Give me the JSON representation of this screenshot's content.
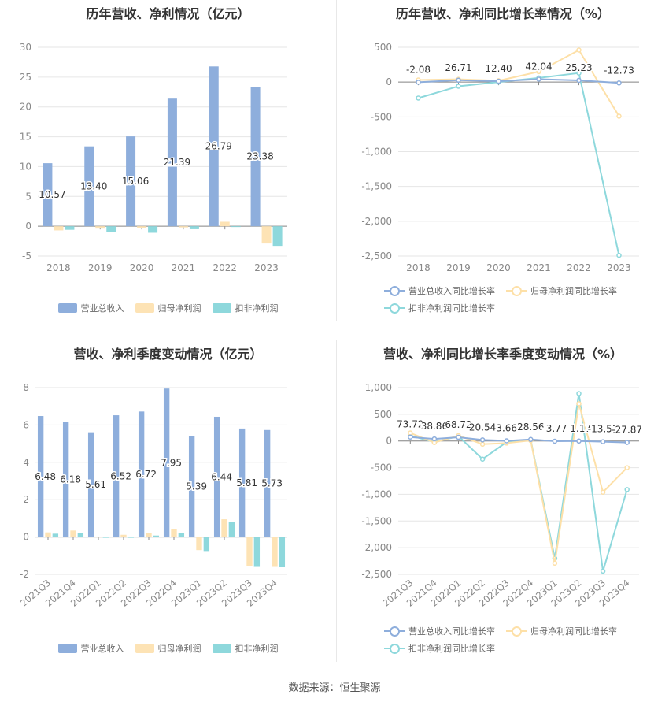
{
  "source": "数据来源：恒生聚源",
  "colors": {
    "revenue": "#8eaedc",
    "net_profit": "#fde3b5",
    "deducted_profit": "#8ed8dc",
    "revenue_line": "#8eaedc",
    "net_profit_line": "#fde0a8",
    "deducted_profit_line": "#8ed8dc"
  },
  "chart_data": [
    {
      "id": "annual_values",
      "type": "bar",
      "title": "历年营收、净利情况（亿元）",
      "categories": [
        "2018",
        "2019",
        "2020",
        "2021",
        "2022",
        "2023"
      ],
      "ylim": [
        -5,
        30
      ],
      "yticks": [
        -5,
        0,
        5,
        10,
        15,
        20,
        25,
        30
      ],
      "grid": true,
      "legend": "bottom",
      "series": [
        {
          "name": "营业总收入",
          "values": [
            10.57,
            13.4,
            15.06,
            21.39,
            26.79,
            23.38
          ],
          "labels": [
            "10.57",
            "13.40",
            "15.06",
            "21.39",
            "26.79",
            "23.38"
          ]
        },
        {
          "name": "归母净利润",
          "values": [
            -0.7,
            -0.4,
            -0.3,
            -0.2,
            0.75,
            -2.9
          ]
        },
        {
          "name": "扣非净利润",
          "values": [
            -0.6,
            -1.0,
            -1.1,
            -0.5,
            -0.1,
            -3.3
          ]
        }
      ]
    },
    {
      "id": "annual_growth",
      "type": "line",
      "title": "历年营收、净利同比增长率情况（%）",
      "categories": [
        "2018",
        "2019",
        "2020",
        "2021",
        "2022",
        "2023"
      ],
      "ylim": [
        -2500,
        500
      ],
      "yticks": [
        -2500,
        -2000,
        -1500,
        -1000,
        -500,
        0,
        500
      ],
      "ytick_labels": [
        "-2,500",
        "-2,000",
        "-1,500",
        "-1,000",
        "-500",
        "0",
        "500"
      ],
      "grid": true,
      "legend": "bottom",
      "series": [
        {
          "name": "营业总收入同比增长率",
          "values": [
            -2.08,
            26.71,
            12.4,
            42.04,
            25.23,
            -12.73
          ],
          "labels": [
            "-2.08",
            "26.71",
            "12.40",
            "42.04",
            "25.23",
            "-12.73"
          ]
        },
        {
          "name": "归母净利润同比增长率",
          "values": [
            30,
            40,
            20,
            150,
            460,
            -490
          ]
        },
        {
          "name": "扣非净利润同比增长率",
          "values": [
            -230,
            -60,
            0,
            60,
            130,
            -2490
          ]
        }
      ]
    },
    {
      "id": "quarterly_values",
      "type": "bar",
      "title": "营收、净利季度变动情况（亿元）",
      "categories": [
        "2021Q3",
        "2021Q4",
        "2022Q1",
        "2022Q2",
        "2022Q3",
        "2022Q4",
        "2023Q1",
        "2023Q2",
        "2023Q3",
        "2023Q4"
      ],
      "ylim": [
        -2,
        8
      ],
      "yticks": [
        -2,
        0,
        2,
        4,
        6,
        8
      ],
      "grid": true,
      "legend": "bottom",
      "series": [
        {
          "name": "营业总收入",
          "values": [
            6.48,
            6.18,
            5.61,
            6.52,
            6.72,
            7.95,
            5.39,
            6.44,
            5.81,
            5.73
          ],
          "labels": [
            "6.48",
            "6.18",
            "5.61",
            "6.52",
            "6.72",
            "7.95",
            "5.39",
            "6.44",
            "5.81",
            "5.73"
          ]
        },
        {
          "name": "归母净利润",
          "values": [
            0.25,
            0.35,
            0.02,
            0.12,
            0.2,
            0.42,
            -0.7,
            0.95,
            -1.55,
            -1.6
          ]
        },
        {
          "name": "扣非净利润",
          "values": [
            0.18,
            0.2,
            -0.02,
            -0.03,
            0.08,
            0.22,
            -0.75,
            0.82,
            -1.6,
            -1.62
          ]
        }
      ]
    },
    {
      "id": "quarterly_growth",
      "type": "line",
      "title": "营收、净利同比增长率季度变动情况（%）",
      "categories": [
        "2021Q3",
        "2021Q4",
        "2022Q1",
        "2022Q2",
        "2022Q3",
        "2022Q4",
        "2023Q1",
        "2023Q2",
        "2023Q3",
        "2023Q4"
      ],
      "ylim": [
        -2500,
        1000
      ],
      "yticks": [
        -2500,
        -2000,
        -1500,
        -1000,
        -500,
        0,
        500,
        1000
      ],
      "ytick_labels": [
        "-2,500",
        "-2,000",
        "-1,500",
        "-1,000",
        "-500",
        "0",
        "500",
        "1,000"
      ],
      "grid": true,
      "legend": "bottom",
      "series": [
        {
          "name": "营业总收入同比增长率",
          "values": [
            73.72,
            38.86,
            68.72,
            20.54,
            3.66,
            28.56,
            -3.77,
            -1.17,
            -13.51,
            -27.87
          ],
          "labels": [
            "73.72",
            "38.86",
            "68.72",
            "20.54",
            "3.66",
            "28.56",
            "-3.77",
            "-1.17",
            "-13.51",
            "-27.87"
          ]
        },
        {
          "name": "归母净利润同比增长率",
          "values": [
            150,
            -30,
            100,
            -60,
            -40,
            10,
            -2290,
            700,
            -960,
            -500
          ]
        },
        {
          "name": "扣非净利润同比增长率",
          "values": [
            100,
            -20,
            90,
            -340,
            -20,
            20,
            -2200,
            890,
            -2440,
            -910
          ]
        }
      ]
    }
  ]
}
